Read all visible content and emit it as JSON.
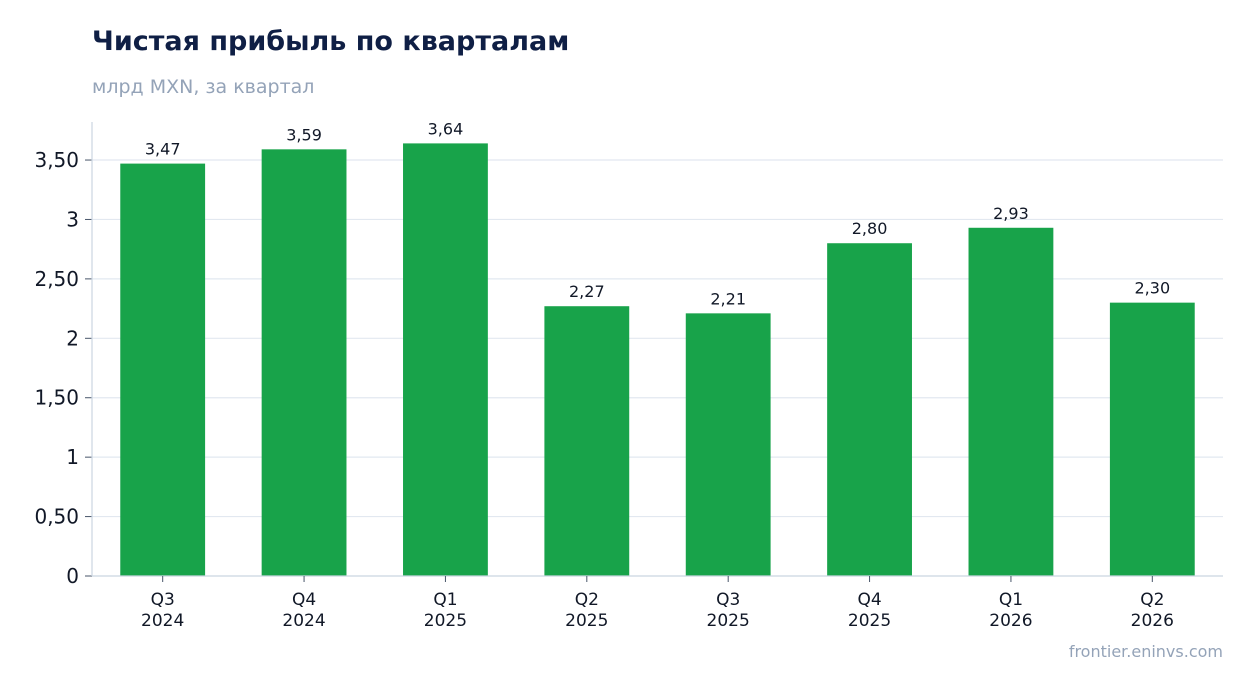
{
  "chart_data": {
    "type": "bar",
    "title": "Чистая прибыль по кварталам",
    "subtitle": "млрд MXN, за квартал",
    "source": "frontier.eninvs.com",
    "categories": [
      [
        "Q3",
        "2024"
      ],
      [
        "Q4",
        "2024"
      ],
      [
        "Q1",
        "2025"
      ],
      [
        "Q2",
        "2025"
      ],
      [
        "Q3",
        "2025"
      ],
      [
        "Q4",
        "2025"
      ],
      [
        "Q1",
        "2026"
      ],
      [
        "Q2",
        "2026"
      ]
    ],
    "values": [
      3.47,
      3.59,
      3.64,
      2.27,
      2.21,
      2.8,
      2.93,
      2.3
    ],
    "value_labels": [
      "3,47",
      "3,59",
      "3,64",
      "2,27",
      "2,21",
      "2,80",
      "2,93",
      "2,30"
    ],
    "ylim": [
      0,
      3.82
    ],
    "yticks": [
      {
        "value": 0,
        "label": "0"
      },
      {
        "value": 0.5,
        "label": "0,50"
      },
      {
        "value": 1,
        "label": "1"
      },
      {
        "value": 1.5,
        "label": "1,50"
      },
      {
        "value": 2,
        "label": "2"
      },
      {
        "value": 2.5,
        "label": "2,50"
      },
      {
        "value": 3,
        "label": "3"
      },
      {
        "value": 3.5,
        "label": "3,50"
      }
    ],
    "grid": true,
    "colors": {
      "bar": "#18a34a",
      "grid": "#e2e8f0",
      "axis": "#cbd5e1",
      "text": "#111827"
    }
  }
}
